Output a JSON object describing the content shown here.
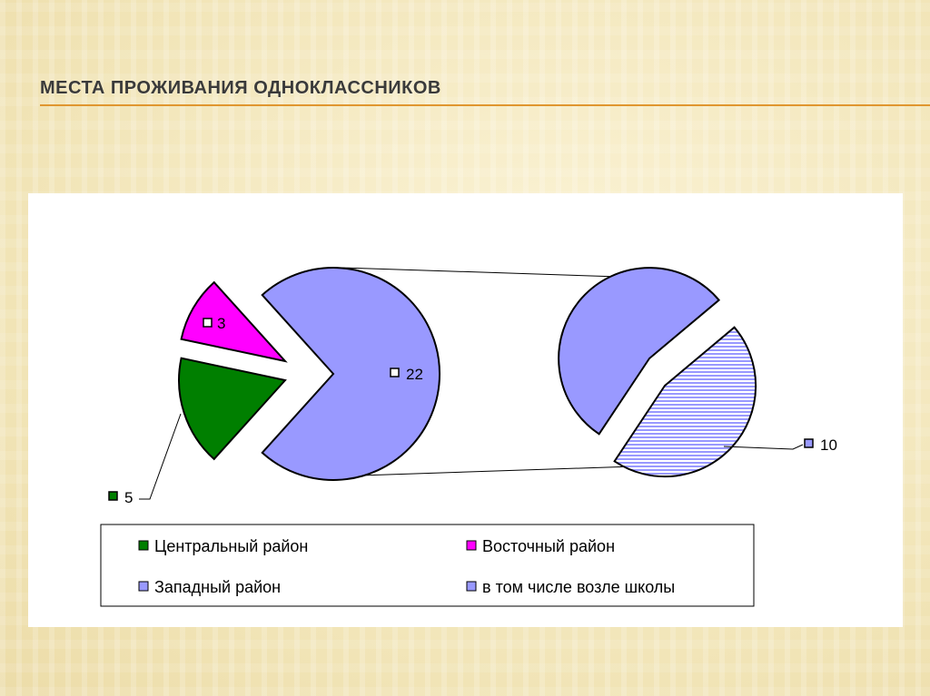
{
  "slide": {
    "title": "МЕСТА ПРОЖИВАНИЯ ОДНОКЛАССНИКОВ"
  },
  "colors": {
    "central": "#007f00",
    "eastern": "#ff00ff",
    "western": "#9999ff",
    "near_school": "#9999ff",
    "title_rule": "#e0962f"
  },
  "chart_data": {
    "type": "pie",
    "subtype": "pie-of-pie",
    "title": "",
    "slices": [
      {
        "name": "Центральный район",
        "value": 5,
        "label": "5",
        "color": "#007f00"
      },
      {
        "name": "Восточный район",
        "value": 3,
        "label": "3",
        "color": "#ff00ff"
      },
      {
        "name": "Западный район",
        "value": 22,
        "label": "22",
        "color": "#9999ff"
      }
    ],
    "secondary": {
      "parent": "Западный район",
      "slices": [
        {
          "name": "в том числе возле школы",
          "value": 10,
          "label": "10",
          "color": "#9999ff",
          "pattern": "horizontal-stripes"
        },
        {
          "name": "",
          "value": 12,
          "label": "",
          "color": "#9999ff"
        }
      ]
    },
    "legend": {
      "position": "bottom",
      "items": [
        "Центральный район",
        "Восточный район",
        "Западный район",
        "в том числе возле школы"
      ]
    }
  }
}
